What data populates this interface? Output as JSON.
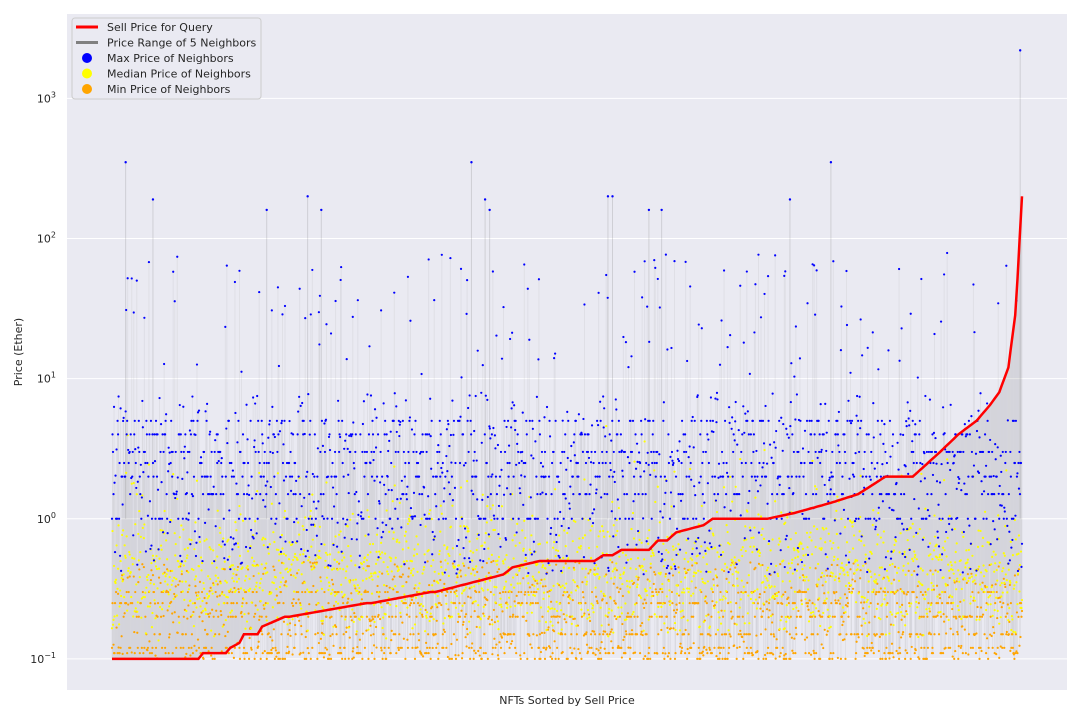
{
  "chart_data": {
    "type": "scatter",
    "title": "",
    "xlabel": "NFTs Sorted by Sell Price",
    "ylabel": "Price (Ether)",
    "yscale": "log",
    "ylim": [
      0.06,
      4000
    ],
    "yticks": [
      {
        "value": 0.1,
        "base": "10",
        "exp": "−1"
      },
      {
        "value": 1,
        "base": "10",
        "exp": "0"
      },
      {
        "value": 10,
        "base": "10",
        "exp": "1"
      },
      {
        "value": 100,
        "base": "10",
        "exp": "2"
      },
      {
        "value": 1000,
        "base": "10",
        "exp": "3"
      }
    ],
    "grid": true,
    "legend_position": "top-left",
    "colors": {
      "background": "#eaeaf2",
      "grid": "#ffffff",
      "sell": "#ff0000",
      "range": "#808080",
      "max": "#0000ff",
      "median": "#ffff00",
      "min": "#ffa500"
    },
    "legend": [
      {
        "label": "Sell Price for Query",
        "kind": "line",
        "color": "#ff0000"
      },
      {
        "label": "Price Range of 5 Neighbors",
        "kind": "line",
        "color": "#808080"
      },
      {
        "label": "Max Price of Neighbors",
        "kind": "dot",
        "color": "#0000ff"
      },
      {
        "label": "Median Price of Neighbors",
        "kind": "dot",
        "color": "#ffff00"
      },
      {
        "label": "Min Price of Neighbors",
        "kind": "dot",
        "color": "#ffa500"
      }
    ],
    "n_points": 1800,
    "sell_price_curve": {
      "x": [
        0,
        0.05,
        0.095,
        0.1,
        0.125,
        0.13,
        0.14,
        0.145,
        0.16,
        0.165,
        0.19,
        0.195,
        0.28,
        0.285,
        0.35,
        0.355,
        0.43,
        0.44,
        0.47,
        0.48,
        0.53,
        0.54,
        0.55,
        0.56,
        0.59,
        0.6,
        0.61,
        0.62,
        0.65,
        0.66,
        0.7,
        0.72,
        0.75,
        0.79,
        0.82,
        0.85,
        0.88,
        0.91,
        0.93,
        0.95,
        0.965,
        0.975,
        0.985,
        0.993,
        1.0
      ],
      "y": [
        0.1,
        0.1,
        0.1,
        0.11,
        0.11,
        0.12,
        0.13,
        0.15,
        0.15,
        0.17,
        0.2,
        0.2,
        0.25,
        0.25,
        0.3,
        0.3,
        0.4,
        0.45,
        0.5,
        0.5,
        0.5,
        0.55,
        0.55,
        0.6,
        0.6,
        0.7,
        0.7,
        0.8,
        0.9,
        1.0,
        1.0,
        1.0,
        1.1,
        1.3,
        1.5,
        2.0,
        2.0,
        3.0,
        4.0,
        5.0,
        6.5,
        8.0,
        12.0,
        30.0,
        200.0
      ]
    },
    "outliers": [
      {
        "x": 0.015,
        "y": 350
      },
      {
        "x": 0.045,
        "y": 190
      },
      {
        "x": 0.17,
        "y": 160
      },
      {
        "x": 0.215,
        "y": 200
      },
      {
        "x": 0.23,
        "y": 160
      },
      {
        "x": 0.395,
        "y": 350
      },
      {
        "x": 0.41,
        "y": 190
      },
      {
        "x": 0.415,
        "y": 160
      },
      {
        "x": 0.55,
        "y": 200
      },
      {
        "x": 0.545,
        "y": 200
      },
      {
        "x": 0.59,
        "y": 160
      },
      {
        "x": 0.604,
        "y": 160
      },
      {
        "x": 0.745,
        "y": 190
      },
      {
        "x": 0.79,
        "y": 350
      },
      {
        "x": 0.998,
        "y": 2200
      }
    ]
  }
}
